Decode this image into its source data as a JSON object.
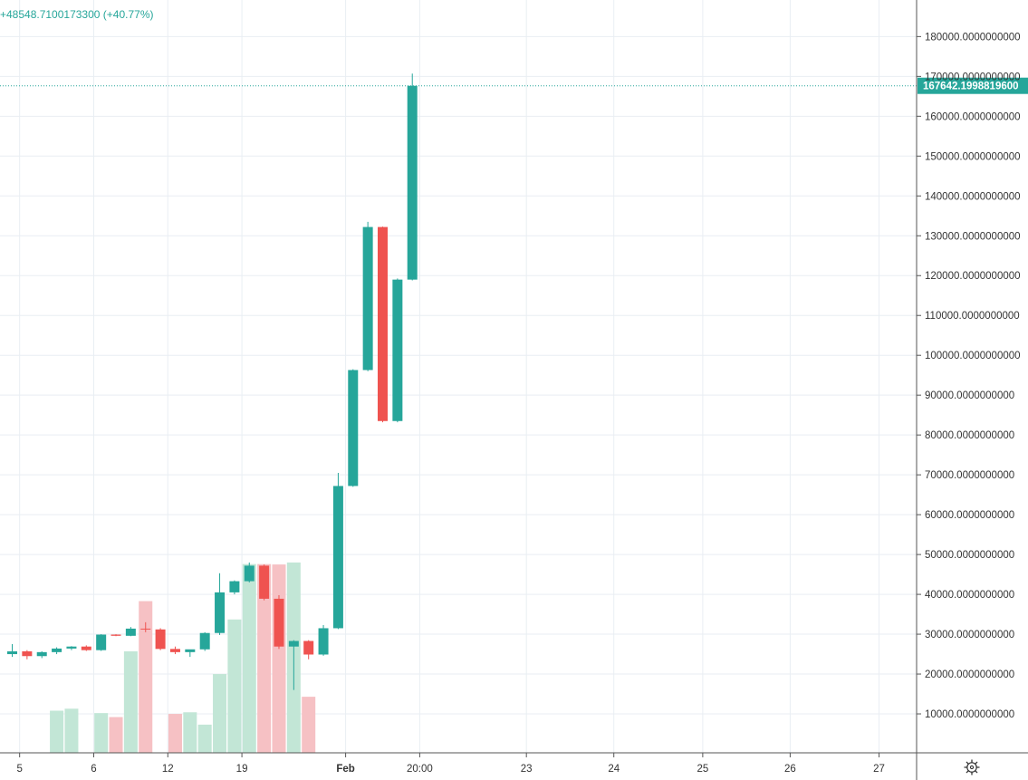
{
  "status": {
    "change_text": "+48548.7100173300 (+40.77%)"
  },
  "colors": {
    "up": "#26a69a",
    "down": "#ef5350",
    "vol_up": "#c2e6d6",
    "vol_down": "#f6c1c4",
    "grid": "#e9eef3",
    "axis_line": "#555555",
    "text": "#333333"
  },
  "icons": {
    "settings": "gear-icon"
  },
  "chart_data": {
    "type": "candlestick",
    "last_price_label": "167642.1998819600",
    "last_price": 167642.19988196,
    "y_range": [
      0,
      189000
    ],
    "y_ticks": [
      {
        "value": 10000,
        "label": "10000.0000000000"
      },
      {
        "value": 20000,
        "label": "20000.0000000000"
      },
      {
        "value": 30000,
        "label": "30000.0000000000"
      },
      {
        "value": 40000,
        "label": "40000.0000000000"
      },
      {
        "value": 50000,
        "label": "50000.0000000000"
      },
      {
        "value": 60000,
        "label": "60000.0000000000"
      },
      {
        "value": 70000,
        "label": "70000.0000000000"
      },
      {
        "value": 80000,
        "label": "80000.0000000000"
      },
      {
        "value": 90000,
        "label": "90000.0000000000"
      },
      {
        "value": 100000,
        "label": "100000.0000000000"
      },
      {
        "value": 110000,
        "label": "110000.0000000000"
      },
      {
        "value": 120000,
        "label": "120000.0000000000"
      },
      {
        "value": 130000,
        "label": "130000.0000000000"
      },
      {
        "value": 140000,
        "label": "140000.0000000000"
      },
      {
        "value": 150000,
        "label": "150000.0000000000"
      },
      {
        "value": 160000,
        "label": "160000.0000000000"
      },
      {
        "value": 170000,
        "label": "170000.0000000000"
      },
      {
        "value": 180000,
        "label": "180000.0000000000"
      }
    ],
    "x_ticks": [
      {
        "pos": 0.5,
        "label": "5",
        "bold": false
      },
      {
        "pos": 5.5,
        "label": "6",
        "bold": false
      },
      {
        "pos": 10.5,
        "label": "12",
        "bold": false
      },
      {
        "pos": 15.5,
        "label": "19",
        "bold": false
      },
      {
        "pos": 22.5,
        "label": "Feb",
        "bold": true
      },
      {
        "pos": 27.5,
        "label": "20:00",
        "bold": false
      },
      {
        "pos": 34.7,
        "label": "23",
        "bold": false
      },
      {
        "pos": 40.6,
        "label": "24",
        "bold": false
      },
      {
        "pos": 46.6,
        "label": "25",
        "bold": false
      },
      {
        "pos": 52.5,
        "label": "26",
        "bold": false
      },
      {
        "pos": 58.5,
        "label": "27",
        "bold": false
      }
    ],
    "vertical_grid": [
      0.5,
      5.5,
      10.5,
      15.5,
      22.5,
      27.5,
      34.7,
      40.6,
      46.6,
      52.5,
      58.5
    ],
    "candles": [
      {
        "o": 25000,
        "h": 27500,
        "l": 24300,
        "c": 25700
      },
      {
        "o": 25700,
        "h": 26000,
        "l": 23700,
        "c": 24500
      },
      {
        "o": 24500,
        "h": 25700,
        "l": 24000,
        "c": 25500
      },
      {
        "o": 25500,
        "h": 26700,
        "l": 25000,
        "c": 26400
      },
      {
        "o": 26400,
        "h": 27000,
        "l": 26000,
        "c": 26900
      },
      {
        "o": 26900,
        "h": 27200,
        "l": 25800,
        "c": 26000
      },
      {
        "o": 26000,
        "h": 30000,
        "l": 25800,
        "c": 29900
      },
      {
        "o": 29900,
        "h": 30000,
        "l": 29500,
        "c": 29600
      },
      {
        "o": 29600,
        "h": 31800,
        "l": 29500,
        "c": 31400
      },
      {
        "o": 31400,
        "h": 33000,
        "l": 30500,
        "c": 31200
      },
      {
        "o": 31200,
        "h": 31500,
        "l": 26000,
        "c": 26300
      },
      {
        "o": 26300,
        "h": 26900,
        "l": 25000,
        "c": 25500
      },
      {
        "o": 25500,
        "h": 26000,
        "l": 24300,
        "c": 26200
      },
      {
        "o": 26200,
        "h": 30500,
        "l": 25800,
        "c": 30300
      },
      {
        "o": 30300,
        "h": 45300,
        "l": 29800,
        "c": 40500
      },
      {
        "o": 40500,
        "h": 43500,
        "l": 40000,
        "c": 43300
      },
      {
        "o": 43300,
        "h": 48000,
        "l": 43000,
        "c": 47200
      },
      {
        "o": 47200,
        "h": 47500,
        "l": 38500,
        "c": 38900
      },
      {
        "o": 38900,
        "h": 39800,
        "l": 26300,
        "c": 26900
      },
      {
        "o": 26900,
        "h": 28500,
        "l": 16000,
        "c": 28300
      },
      {
        "o": 28300,
        "h": 28500,
        "l": 23700,
        "c": 24900
      },
      {
        "o": 24900,
        "h": 32300,
        "l": 24600,
        "c": 31500
      },
      {
        "o": 31500,
        "h": 70500,
        "l": 31300,
        "c": 67200
      },
      {
        "o": 67200,
        "h": 96500,
        "l": 67000,
        "c": 96300
      },
      {
        "o": 96300,
        "h": 133500,
        "l": 96000,
        "c": 132200
      },
      {
        "o": 132200,
        "h": 132300,
        "l": 83200,
        "c": 83500
      },
      {
        "o": 83500,
        "h": 119300,
        "l": 83200,
        "c": 119000
      },
      {
        "o": 119000,
        "h": 170700,
        "l": 118800,
        "c": 167642.2
      }
    ],
    "volumes": [
      0,
      0,
      0,
      10800,
      11300,
      0,
      10200,
      9200,
      25700,
      38300,
      0,
      10000,
      10400,
      7300,
      20000,
      33700,
      47600,
      47600,
      47500,
      48000,
      14300,
      0,
      0,
      0,
      0,
      0,
      0,
      0
    ]
  }
}
